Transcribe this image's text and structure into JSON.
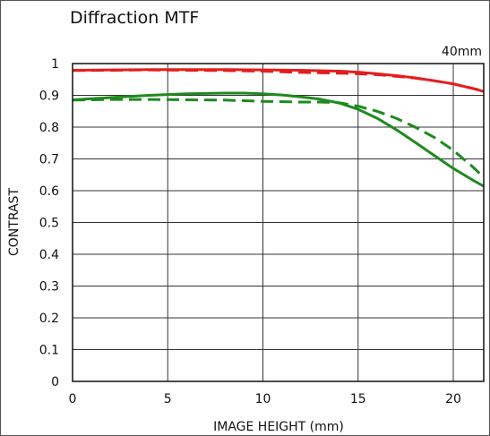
{
  "chart_data": {
    "type": "line",
    "title": "Diffraction  MTF",
    "focal_length_label": "40mm",
    "xlabel": "IMAGE HEIGHT (mm)",
    "ylabel": "CONTRAST",
    "xlim": [
      0,
      21.6
    ],
    "ylim": [
      0,
      1
    ],
    "xticks": [
      0,
      5,
      10,
      15,
      20
    ],
    "yticks": [
      0,
      0.1,
      0.2,
      0.3,
      0.4,
      0.5,
      0.6,
      0.7,
      0.8,
      0.9,
      1
    ],
    "ytick_labels": [
      "0",
      "0.1",
      "0.2",
      "0.3",
      "0.4",
      "0.5",
      "0.6",
      "0.7",
      "0.8",
      "0.9",
      "1"
    ],
    "grid": true,
    "legend": "none",
    "colors": {
      "red": "#e41e1e",
      "green": "#1e8a1e"
    },
    "series": [
      {
        "color": "red",
        "style": "solid",
        "x": [
          0,
          2,
          4,
          6,
          8,
          10,
          12,
          14,
          15,
          16,
          17,
          18,
          19,
          20,
          21,
          21.6
        ],
        "y": [
          0.979,
          0.98,
          0.981,
          0.981,
          0.981,
          0.98,
          0.979,
          0.976,
          0.973,
          0.968,
          0.962,
          0.955,
          0.946,
          0.936,
          0.922,
          0.912
        ]
      },
      {
        "color": "red",
        "style": "dashed",
        "x": [
          0,
          2,
          4,
          6,
          8,
          10,
          12,
          14,
          15,
          16,
          17,
          18,
          19,
          20,
          21,
          21.6
        ],
        "y": [
          0.978,
          0.979,
          0.98,
          0.979,
          0.978,
          0.976,
          0.972,
          0.97,
          0.968,
          0.965,
          0.96,
          0.954,
          0.946,
          0.936,
          0.922,
          0.914
        ]
      },
      {
        "color": "green",
        "style": "solid",
        "x": [
          0,
          2,
          4,
          6,
          8,
          9,
          10,
          11,
          12,
          13,
          14,
          15,
          16,
          17,
          18,
          19,
          20,
          21,
          21.6
        ],
        "y": [
          0.886,
          0.893,
          0.9,
          0.905,
          0.907,
          0.907,
          0.905,
          0.901,
          0.895,
          0.888,
          0.876,
          0.856,
          0.828,
          0.792,
          0.752,
          0.711,
          0.67,
          0.634,
          0.614
        ]
      },
      {
        "color": "green",
        "style": "dashed",
        "x": [
          0,
          2,
          4,
          6,
          8,
          10,
          11,
          12,
          13,
          14,
          15,
          16,
          17,
          18,
          19,
          20,
          21,
          21.6
        ],
        "y": [
          0.885,
          0.887,
          0.887,
          0.886,
          0.885,
          0.881,
          0.88,
          0.879,
          0.879,
          0.877,
          0.866,
          0.85,
          0.828,
          0.8,
          0.768,
          0.727,
          0.676,
          0.642
        ]
      }
    ]
  }
}
